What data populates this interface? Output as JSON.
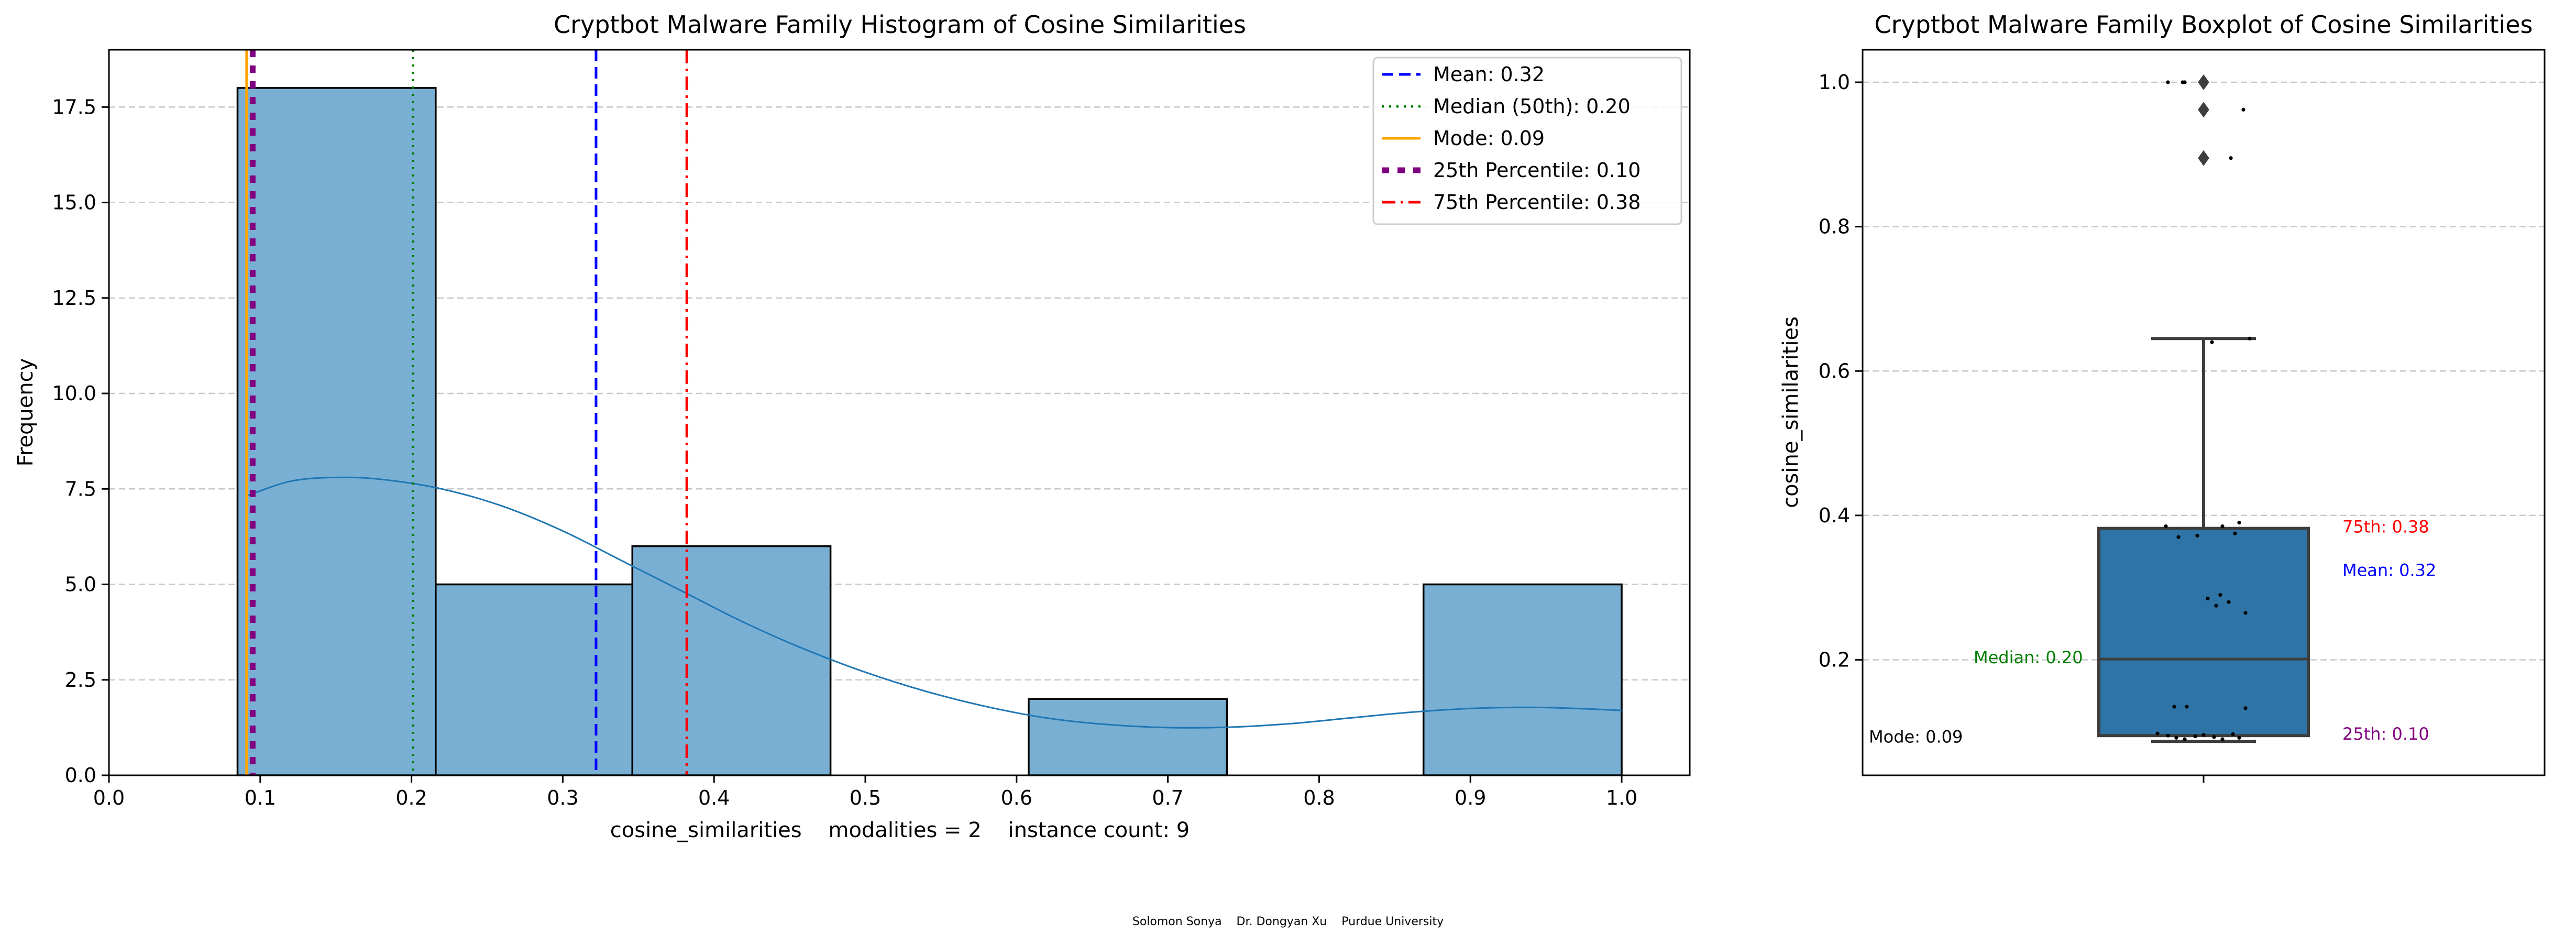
{
  "footer": "Solomon Sonya    Dr. Dongyan Xu    Purdue University",
  "colors": {
    "bar_fill": "#7aafd4",
    "kde": "#1f77b4",
    "box_fill": "#2f74a6",
    "mean": "#0000ff",
    "median": "#008000",
    "mode": "#ffa500",
    "p25": "#800080",
    "p75": "#ff0000",
    "grid": "#c8c8c8"
  },
  "chart_data": [
    {
      "type": "bar",
      "subtype": "histogram",
      "title": "Cryptbot Malware Family Histogram of Cosine Similarities",
      "xlabel": "cosine_similarities    modalities = 2    instance count: 9",
      "ylabel": "Frequency",
      "xlim": [
        0.0,
        1.045
      ],
      "ylim": [
        0,
        19
      ],
      "x_ticks": [
        "0.0",
        "0.1",
        "0.2",
        "0.3",
        "0.4",
        "0.5",
        "0.6",
        "0.7",
        "0.8",
        "0.9",
        "1.0"
      ],
      "y_ticks": [
        "0.0",
        "2.5",
        "5.0",
        "7.5",
        "10.0",
        "12.5",
        "15.0",
        "17.5"
      ],
      "grid": "y dashed",
      "legend_position": "top-right",
      "bins": [
        {
          "x0": 0.085,
          "x1": 0.216,
          "count": 18
        },
        {
          "x0": 0.216,
          "x1": 0.346,
          "count": 5
        },
        {
          "x0": 0.346,
          "x1": 0.477,
          "count": 6
        },
        {
          "x0": 0.477,
          "x1": 0.608,
          "count": 0
        },
        {
          "x0": 0.608,
          "x1": 0.739,
          "count": 2
        },
        {
          "x0": 0.739,
          "x1": 0.869,
          "count": 0
        },
        {
          "x0": 0.869,
          "x1": 1.0,
          "count": 5
        }
      ],
      "kde": {
        "x": [
          0.09,
          0.12,
          0.15,
          0.18,
          0.22,
          0.26,
          0.3,
          0.34,
          0.38,
          0.42,
          0.46,
          0.5,
          0.54,
          0.58,
          0.62,
          0.66,
          0.7,
          0.74,
          0.78,
          0.82,
          0.86,
          0.9,
          0.94,
          0.97,
          1.0
        ],
        "y": [
          7.3,
          7.7,
          7.8,
          7.75,
          7.5,
          7.05,
          6.4,
          5.6,
          4.8,
          4.0,
          3.3,
          2.7,
          2.2,
          1.8,
          1.5,
          1.33,
          1.25,
          1.26,
          1.35,
          1.5,
          1.65,
          1.75,
          1.78,
          1.75,
          1.7
        ]
      },
      "reference_lines": [
        {
          "label": "Mean: 0.32",
          "value": 0.322,
          "color": "#0000ff",
          "style": "dashed"
        },
        {
          "label": "Median (50th): 0.20",
          "value": 0.201,
          "color": "#008000",
          "style": "dotted"
        },
        {
          "label": "Mode: 0.09",
          "value": 0.091,
          "color": "#ffa500",
          "style": "solid"
        },
        {
          "label": "25th Percentile: 0.10",
          "value": 0.095,
          "color": "#800080",
          "style": "thick-dotted"
        },
        {
          "label": "75th Percentile: 0.38",
          "value": 0.382,
          "color": "#ff0000",
          "style": "dashdot"
        }
      ]
    },
    {
      "type": "boxplot",
      "title": "Cryptbot Malware Family Boxplot of Cosine Similarities",
      "ylabel": "cosine_similarities",
      "ylim": [
        0.04,
        1.045
      ],
      "y_ticks": [
        "0.2",
        "0.4",
        "0.6",
        "0.8",
        "1.0"
      ],
      "grid": "y dashed",
      "box": {
        "q1": 0.095,
        "median": 0.201,
        "q3": 0.382,
        "whisker_low": 0.087,
        "whisker_high": 0.645
      },
      "outliers": [
        1.0,
        0.962,
        0.895
      ],
      "points": [
        {
          "x": -0.17,
          "y": 1.0
        },
        {
          "x": -0.1,
          "y": 1.0
        },
        {
          "x": -0.09,
          "y": 1.0
        },
        {
          "x": 0.19,
          "y": 0.962
        },
        {
          "x": 0.13,
          "y": 0.895
        },
        {
          "x": 0.04,
          "y": 0.64
        },
        {
          "x": 0.22,
          "y": 0.645
        },
        {
          "x": -0.18,
          "y": 0.385
        },
        {
          "x": -0.03,
          "y": 0.372
        },
        {
          "x": -0.12,
          "y": 0.37
        },
        {
          "x": 0.09,
          "y": 0.385
        },
        {
          "x": 0.17,
          "y": 0.39
        },
        {
          "x": 0.15,
          "y": 0.375
        },
        {
          "x": 0.02,
          "y": 0.285
        },
        {
          "x": 0.08,
          "y": 0.29
        },
        {
          "x": 0.12,
          "y": 0.28
        },
        {
          "x": 0.06,
          "y": 0.275
        },
        {
          "x": 0.2,
          "y": 0.265
        },
        {
          "x": -0.08,
          "y": 0.135
        },
        {
          "x": -0.14,
          "y": 0.135
        },
        {
          "x": 0.2,
          "y": 0.133
        },
        {
          "x": -0.22,
          "y": 0.098
        },
        {
          "x": -0.17,
          "y": 0.095
        },
        {
          "x": -0.13,
          "y": 0.092
        },
        {
          "x": -0.09,
          "y": 0.09
        },
        {
          "x": -0.04,
          "y": 0.094
        },
        {
          "x": 0.0,
          "y": 0.096
        },
        {
          "x": 0.05,
          "y": 0.093
        },
        {
          "x": 0.09,
          "y": 0.09
        },
        {
          "x": 0.14,
          "y": 0.097
        },
        {
          "x": 0.17,
          "y": 0.092
        }
      ],
      "annotations": {
        "p75": "75th: 0.38",
        "mean": "Mean: 0.32",
        "median": "Median: 0.20",
        "mode": "Mode: 0.09",
        "p25": "25th: 0.10"
      }
    }
  ]
}
